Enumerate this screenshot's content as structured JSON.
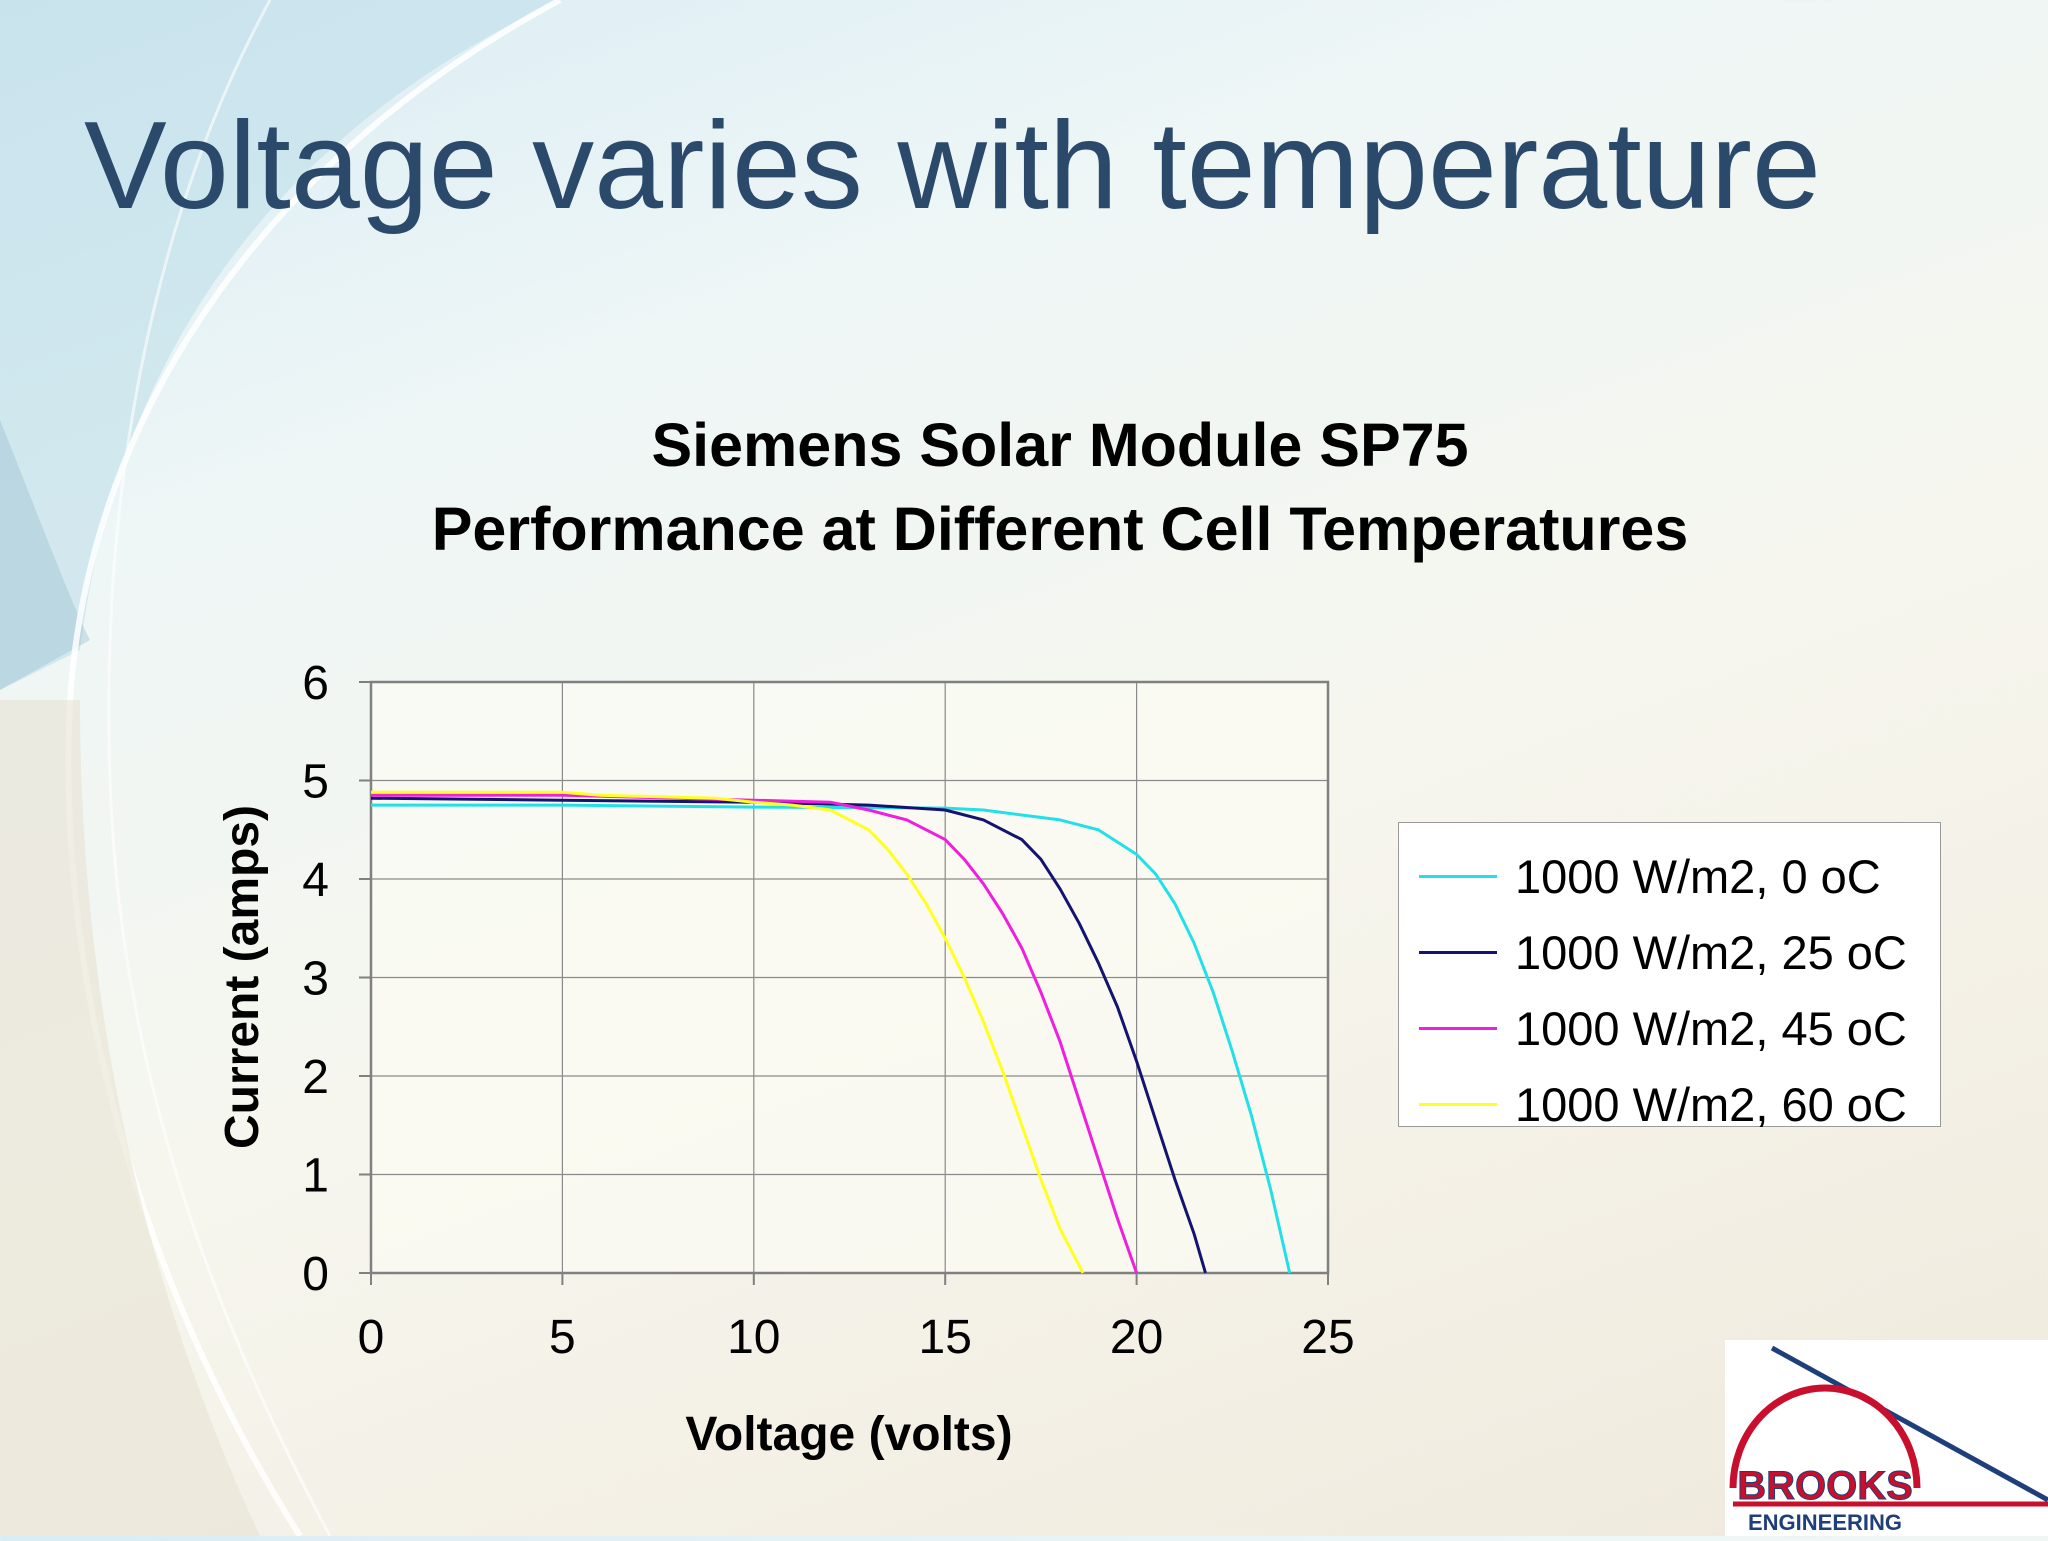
{
  "slide": {
    "title": "Voltage varies with temperature"
  },
  "chart_data": {
    "type": "line",
    "title": "Siemens Solar Module SP75",
    "subtitle": "Performance at Different Cell Temperatures",
    "xlabel": "Voltage (volts)",
    "ylabel": "Current (amps)",
    "xlim": [
      0,
      25
    ],
    "ylim": [
      0,
      6
    ],
    "xticks": [
      "0",
      "5",
      "10",
      "15",
      "20",
      "25"
    ],
    "yticks": [
      "0",
      "1",
      "2",
      "3",
      "4",
      "5",
      "6"
    ],
    "grid": true,
    "legend_position": "right",
    "series": [
      {
        "name": "1000 W/m2, 0 oC",
        "color": "#22e0e8",
        "x": [
          0,
          5,
          10,
          15,
          16,
          17,
          18,
          19,
          20,
          20.5,
          21,
          21.5,
          22,
          22.5,
          23,
          23.5,
          24
        ],
        "y": [
          4.75,
          4.75,
          4.73,
          4.72,
          4.7,
          4.65,
          4.6,
          4.5,
          4.25,
          4.05,
          3.75,
          3.35,
          2.85,
          2.25,
          1.6,
          0.85,
          0
        ]
      },
      {
        "name": "1000 W/m2, 25 oC",
        "color": "#141470",
        "x": [
          0,
          5,
          10,
          13,
          15,
          16,
          17,
          17.5,
          18,
          18.5,
          19,
          19.5,
          20,
          20.5,
          21,
          21.5,
          21.8
        ],
        "y": [
          4.82,
          4.8,
          4.78,
          4.75,
          4.7,
          4.6,
          4.4,
          4.2,
          3.9,
          3.55,
          3.15,
          2.7,
          2.15,
          1.55,
          0.95,
          0.4,
          0
        ]
      },
      {
        "name": "1000 W/m2, 45 oC",
        "color": "#ee20dd",
        "x": [
          0,
          5,
          10,
          12,
          13,
          14,
          15,
          15.5,
          16,
          16.5,
          17,
          17.5,
          18,
          18.5,
          19,
          19.5,
          20
        ],
        "y": [
          4.85,
          4.85,
          4.8,
          4.78,
          4.7,
          4.6,
          4.4,
          4.2,
          3.95,
          3.65,
          3.3,
          2.85,
          2.35,
          1.75,
          1.15,
          0.55,
          0
        ]
      },
      {
        "name": "1000 W/m2, 60 oC",
        "color": "#ffff22",
        "x": [
          0,
          5,
          6,
          9,
          10,
          11,
          12,
          13,
          13.5,
          14,
          14.5,
          15,
          15.5,
          16,
          16.5,
          17,
          17.5,
          18,
          18.6
        ],
        "y": [
          4.88,
          4.88,
          4.85,
          4.82,
          4.78,
          4.75,
          4.7,
          4.5,
          4.3,
          4.05,
          3.75,
          3.4,
          3.0,
          2.55,
          2.05,
          1.5,
          0.95,
          0.45,
          0
        ]
      }
    ]
  },
  "logo": {
    "brand": "BROOKS",
    "subtitle": "ENGINEERING",
    "colors": {
      "red": "#c8102e",
      "blue": "#1f3f7a"
    }
  }
}
